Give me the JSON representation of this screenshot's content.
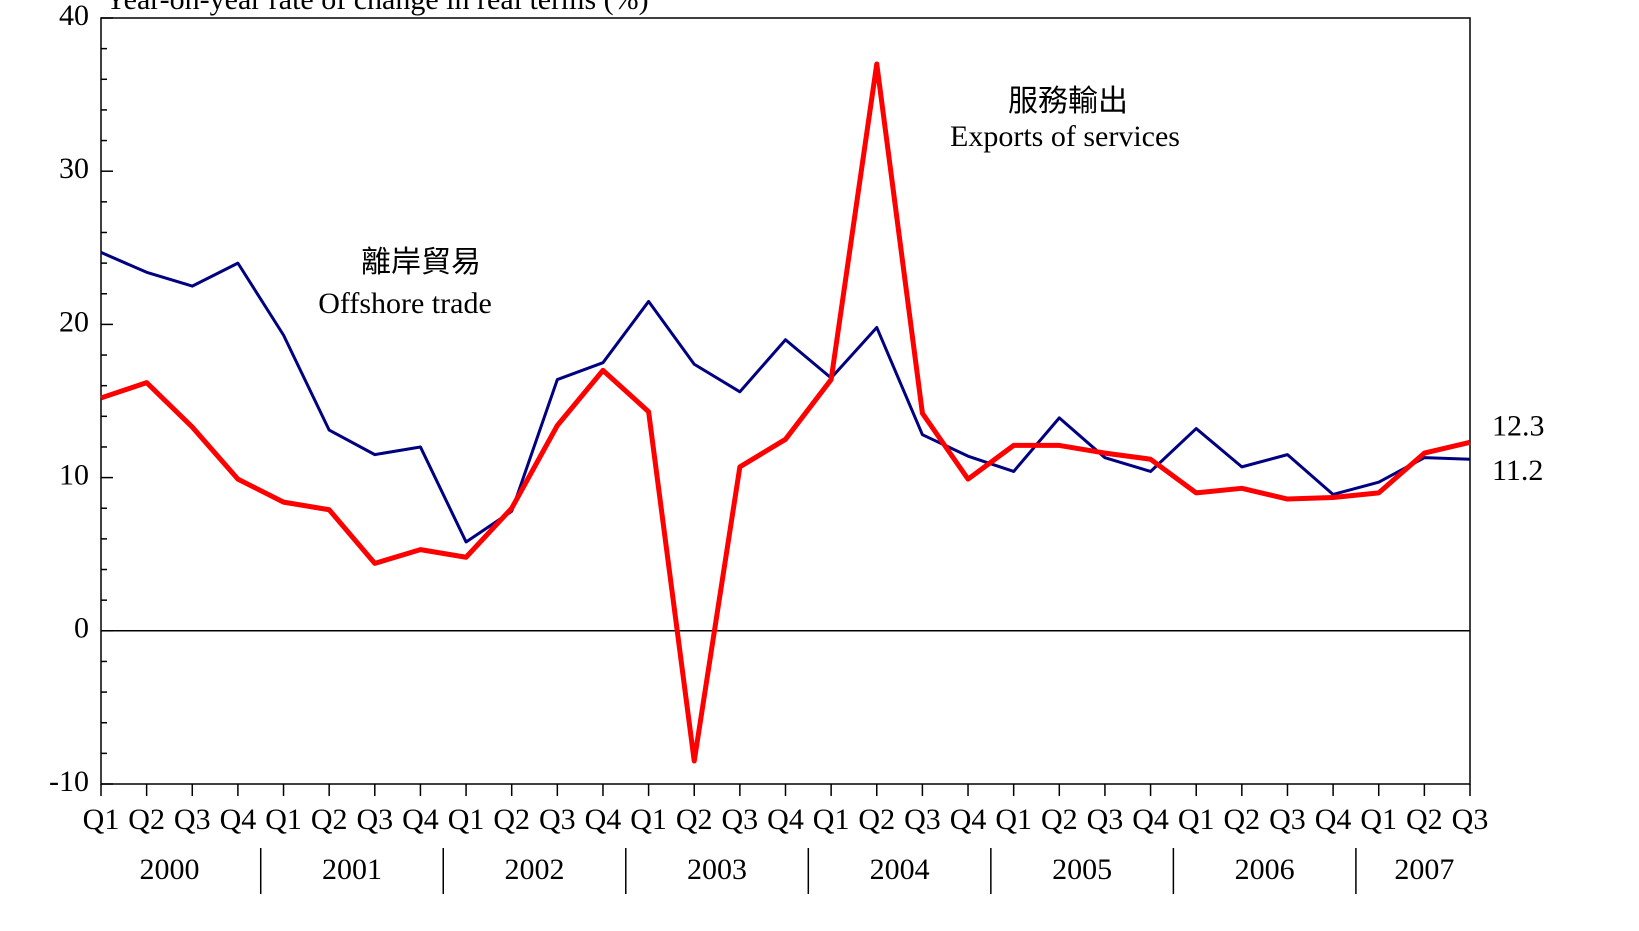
{
  "chart_data": {
    "type": "line",
    "title": "Year-on-year rate of change in real terms (%)",
    "categories": [
      "Q1",
      "Q2",
      "Q3",
      "Q4",
      "Q1",
      "Q2",
      "Q3",
      "Q4",
      "Q1",
      "Q2",
      "Q3",
      "Q4",
      "Q1",
      "Q2",
      "Q3",
      "Q4",
      "Q1",
      "Q2",
      "Q3",
      "Q4",
      "Q1",
      "Q2",
      "Q3",
      "Q4",
      "Q1",
      "Q2",
      "Q3",
      "Q4",
      "Q1",
      "Q2",
      "Q3"
    ],
    "years": [
      "2000",
      "2001",
      "2002",
      "2003",
      "2004",
      "2005",
      "2006",
      "2007"
    ],
    "series": [
      {
        "name": "Offshore trade",
        "name_zh": "離岸貿易",
        "color": "#000080",
        "values": [
          24.7,
          23.4,
          22.5,
          24.0,
          19.3,
          13.1,
          11.5,
          12.0,
          5.8,
          7.8,
          16.4,
          17.5,
          21.5,
          17.4,
          15.6,
          19.0,
          16.5,
          19.8,
          12.8,
          11.4,
          10.4,
          13.9,
          11.3,
          10.4,
          13.2,
          10.7,
          11.5,
          8.9,
          9.7,
          11.3,
          11.2
        ]
      },
      {
        "name": "Exports of services",
        "name_zh": "服務輸出",
        "color": "#ff0000",
        "values": [
          15.2,
          16.2,
          13.3,
          9.9,
          8.4,
          7.9,
          4.4,
          5.3,
          4.8,
          8.0,
          13.4,
          17.0,
          14.3,
          -8.5,
          10.7,
          12.5,
          16.4,
          37.0,
          14.2,
          9.9,
          12.1,
          12.1,
          11.6,
          11.2,
          9.0,
          9.3,
          8.6,
          8.7,
          9.0,
          11.6,
          12.3
        ]
      }
    ],
    "ylim": [
      -10,
      40
    ],
    "yticks": [
      -10,
      0,
      10,
      20,
      30,
      40
    ],
    "yminorticks": [
      -8,
      -6,
      -4,
      -2,
      2,
      4,
      6,
      8,
      12,
      14,
      16,
      18,
      22,
      24,
      26,
      28,
      32,
      34,
      36,
      38
    ]
  }
}
